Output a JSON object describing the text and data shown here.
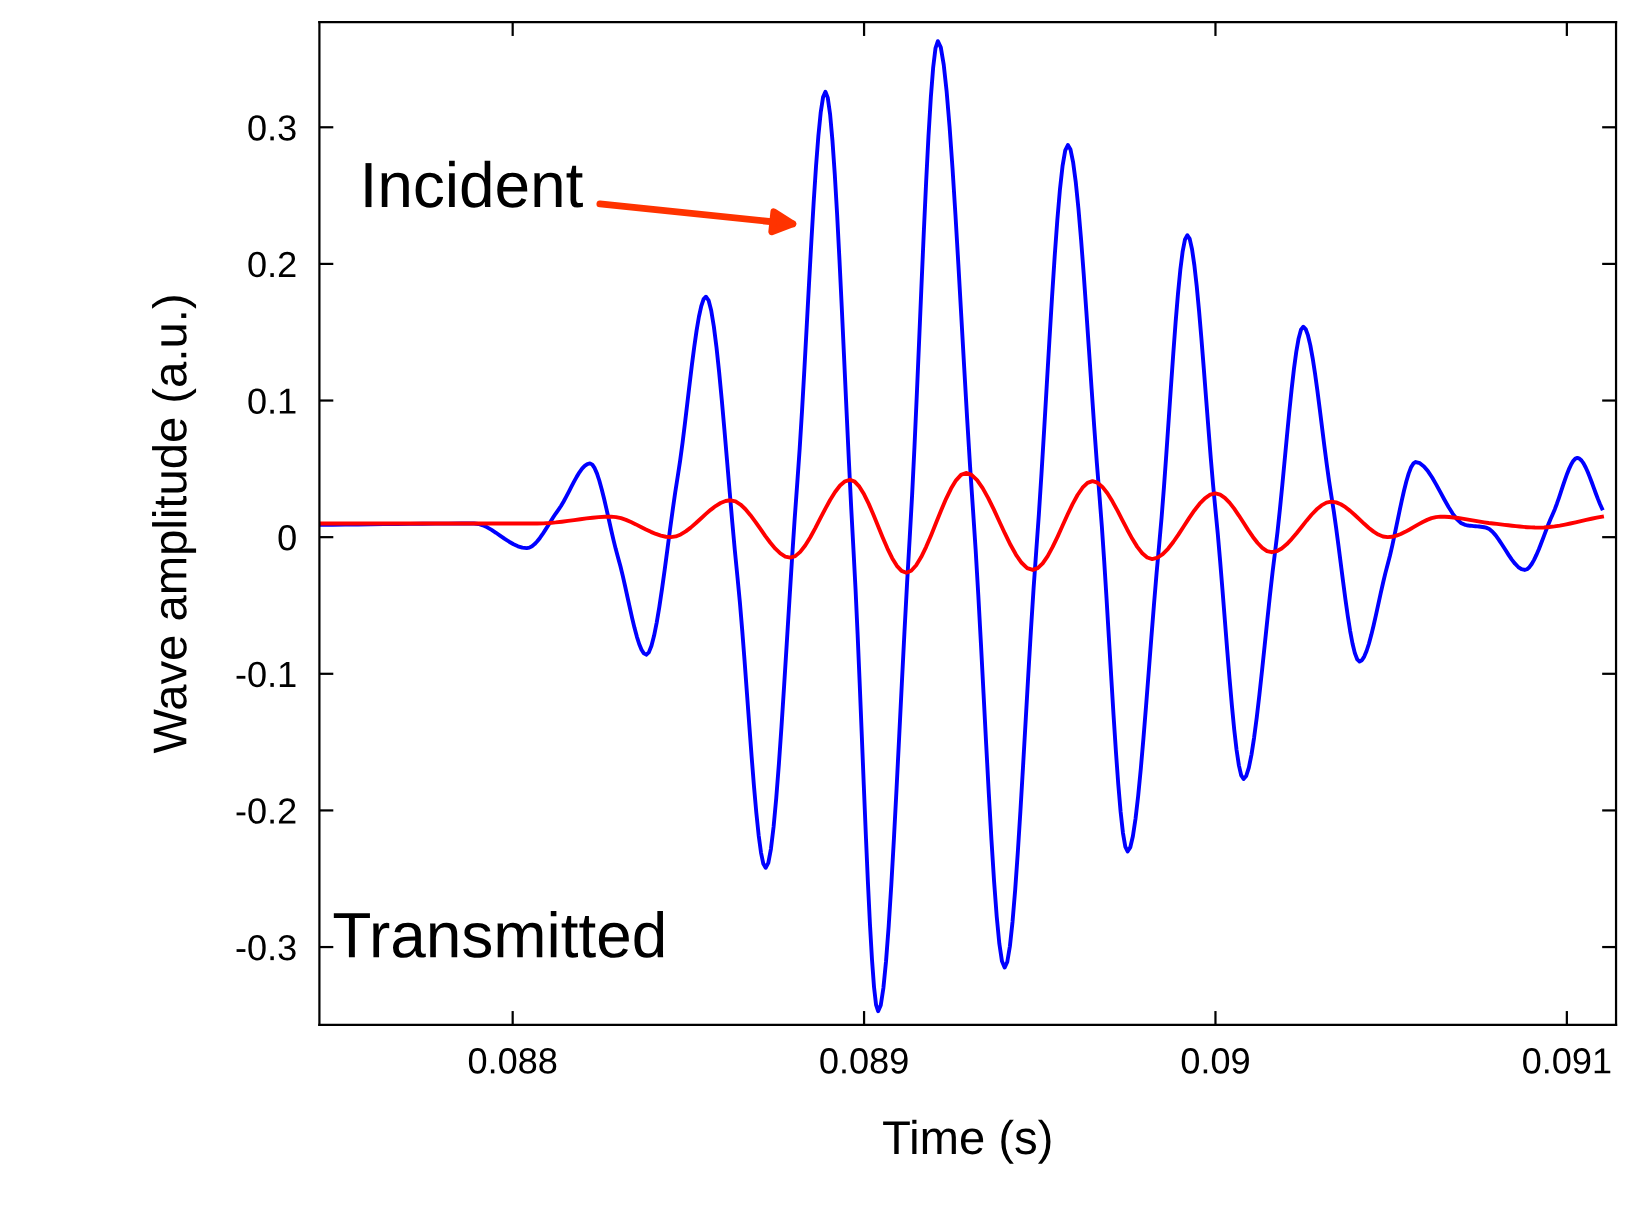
{
  "chart_data": {
    "type": "line",
    "xlabel": "Time (s)",
    "ylabel": "Wave amplitude (a.u.)",
    "xlim": [
      0.08745,
      0.09114
    ],
    "ylim": [
      -0.357,
      0.377
    ],
    "xticks": [
      0.088,
      0.089,
      0.09,
      0.091
    ],
    "yticks": [
      -0.3,
      -0.2,
      -0.1,
      0,
      0.1,
      0.2,
      0.3
    ],
    "grid": false,
    "legend": false,
    "marker": "none",
    "line_style": "solid",
    "annotations": [
      "Incident",
      "Transmitted"
    ],
    "series": [
      {
        "color": "#0000ff",
        "x": [
          0.08745,
          0.08789,
          0.08804,
          0.08813,
          0.08822,
          0.0883,
          0.08838,
          0.08847,
          0.08855,
          0.08864,
          0.08872,
          0.08881,
          0.08889,
          0.08897,
          0.08904,
          0.08913,
          0.08921,
          0.08931,
          0.0894,
          0.08949,
          0.08958,
          0.08967,
          0.08975,
          0.08984,
          0.08992,
          0.09,
          0.09008,
          0.09017,
          0.09025,
          0.09033,
          0.09041,
          0.09049,
          0.09057,
          0.09071,
          0.09077,
          0.09088,
          0.09096,
          0.09103,
          0.0911
        ],
        "values": [
          0.009,
          0.01,
          -0.008,
          0.02,
          0.054,
          -0.015,
          -0.086,
          0.045,
          0.176,
          -0.03,
          -0.242,
          0.04,
          0.326,
          -0.01,
          -0.347,
          0.0,
          0.363,
          0.02,
          -0.315,
          -0.01,
          0.287,
          0.03,
          -0.23,
          -0.005,
          0.221,
          0.02,
          -0.177,
          -0.01,
          0.154,
          0.03,
          -0.091,
          -0.02,
          0.055,
          0.009,
          0.007,
          -0.024,
          0.017,
          0.058,
          0.021
        ]
      },
      {
        "color": "#ff0000",
        "x": [
          0.08745,
          0.08807,
          0.08828,
          0.08845,
          0.08862,
          0.08879,
          0.08896,
          0.08912,
          0.08929,
          0.08948,
          0.08965,
          0.08982,
          0.09,
          0.09016,
          0.09033,
          0.09049,
          0.09064,
          0.09079,
          0.09092,
          0.0911
        ],
        "values": [
          0.01,
          0.01,
          0.015,
          0.0,
          0.027,
          -0.015,
          0.042,
          -0.026,
          0.047,
          -0.024,
          0.041,
          -0.016,
          0.032,
          -0.011,
          0.026,
          0.0,
          0.015,
          0.01,
          0.007,
          0.015
        ]
      }
    ]
  }
}
